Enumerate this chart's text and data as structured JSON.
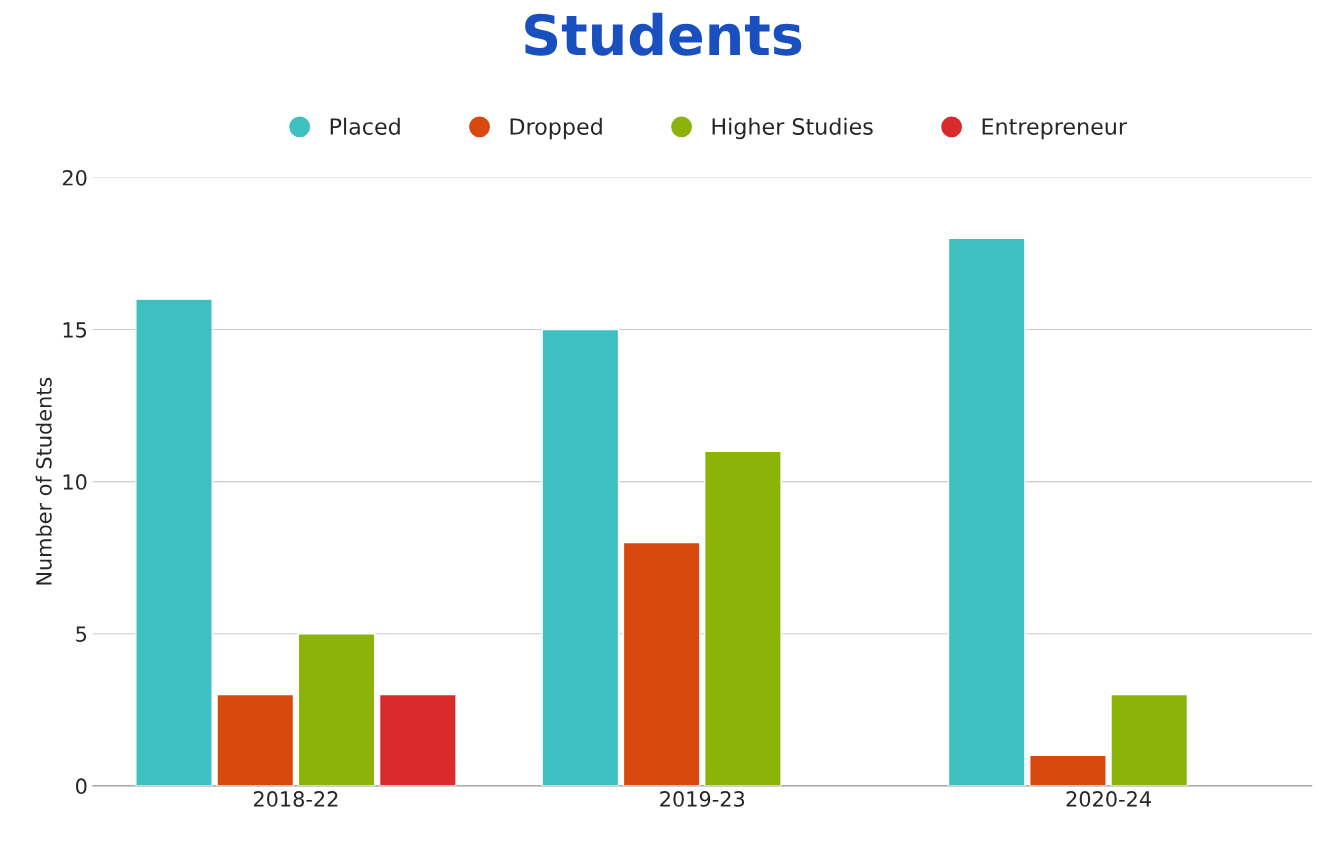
{
  "chart_data": {
    "type": "bar",
    "title": "Students",
    "ylabel": "Number of Students",
    "categories": [
      "2018-22",
      "2019-23",
      "2020-24"
    ],
    "series": [
      {
        "name": "Placed",
        "color": "#3fc0c0",
        "values": [
          16,
          15,
          18
        ]
      },
      {
        "name": "Dropped",
        "color": "#d9480f",
        "values": [
          3,
          8,
          1
        ]
      },
      {
        "name": "Higher Studies",
        "color": "#8cb30a",
        "values": [
          5,
          11,
          3
        ]
      },
      {
        "name": "Entrepreneur",
        "color": "#d92b2b",
        "values": [
          3,
          null,
          null
        ]
      }
    ],
    "ylim": [
      0,
      20
    ],
    "yticks": [
      0,
      5,
      10,
      15,
      20
    ],
    "grid": "y",
    "legend": "top"
  }
}
